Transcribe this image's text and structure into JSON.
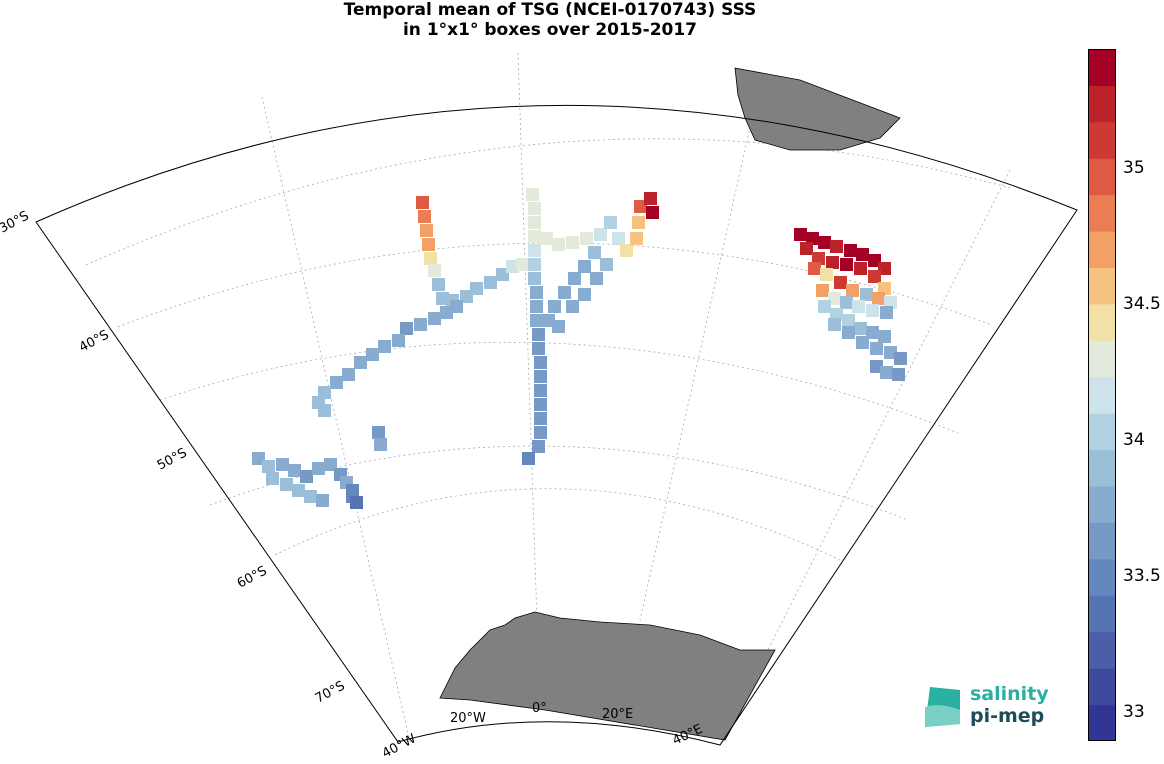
{
  "title": {
    "line1": "Temporal mean of TSG (NCEI-0170743) SSS",
    "line2": "in 1°x1° boxes over 2015-2017"
  },
  "map": {
    "lat_labels": [
      "30°S",
      "40°S",
      "50°S",
      "60°S",
      "70°S"
    ],
    "lon_labels": [
      "40°W",
      "20°W",
      "0°",
      "20°E",
      "40°E"
    ],
    "land_color": "#808080",
    "grid": true
  },
  "colorbar": {
    "min": 32.9,
    "max": 35.45,
    "ticks": [
      "33",
      "33.5",
      "34",
      "34.5",
      "35"
    ],
    "colors": [
      "#313695",
      "#3d4a9e",
      "#4a5fa8",
      "#5673b2",
      "#6487bd",
      "#7699c6",
      "#88acd0",
      "#9cbfd9",
      "#b2d1e2",
      "#cde3e9",
      "#e3eadb",
      "#f2e1a6",
      "#f6c27f",
      "#f3a066",
      "#ea7d54",
      "#df5a42",
      "#cd3a33",
      "#bb2229",
      "#a50026"
    ]
  },
  "logo": {
    "line1": "salinity",
    "line2": "pi-mep"
  }
}
